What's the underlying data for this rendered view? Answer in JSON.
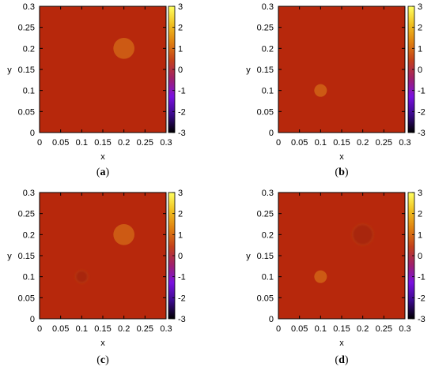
{
  "chart_data": [
    {
      "type": "heatmap",
      "caption_pre": "(",
      "caption_letter": "a",
      "caption_post": ")",
      "xlabel": "x",
      "ylabel": "y",
      "xlim": [
        0,
        0.3
      ],
      "ylim": [
        0,
        0.3
      ],
      "xticks": [
        "0",
        "0.05",
        "0.1",
        "0.15",
        "0.2",
        "0.25",
        "0.3"
      ],
      "yticks": [
        "0",
        "0.05",
        "0.1",
        "0.15",
        "0.2",
        "0.25",
        "0.3"
      ],
      "colorbar": {
        "range": [
          -3,
          3
        ],
        "ticks": [
          "3",
          "2",
          "1",
          "0",
          "-1",
          "-2",
          "-3"
        ]
      },
      "background_value": 0.6,
      "circles": [
        {
          "cx": 0.2,
          "cy": 0.2,
          "r": 0.025,
          "value": 1.0,
          "edge": "sharp"
        }
      ]
    },
    {
      "type": "heatmap",
      "caption_pre": "(",
      "caption_letter": "b",
      "caption_post": ")",
      "xlabel": "x",
      "ylabel": "y",
      "xlim": [
        0,
        0.3
      ],
      "ylim": [
        0,
        0.3
      ],
      "xticks": [
        "0",
        "0.05",
        "0.1",
        "0.15",
        "0.2",
        "0.25",
        "0.3"
      ],
      "yticks": [
        "0",
        "0.05",
        "0.1",
        "0.15",
        "0.2",
        "0.25",
        "0.3"
      ],
      "colorbar": {
        "range": [
          -3,
          3
        ],
        "ticks": [
          "3",
          "2",
          "1",
          "0",
          "-1",
          "-2",
          "-3"
        ]
      },
      "background_value": 0.6,
      "circles": [
        {
          "cx": 0.1,
          "cy": 0.1,
          "r": 0.015,
          "value": 1.0,
          "edge": "sharp"
        }
      ]
    },
    {
      "type": "heatmap",
      "caption_pre": "(",
      "caption_letter": "c",
      "caption_post": ")",
      "xlabel": "x",
      "ylabel": "y",
      "xlim": [
        0,
        0.3
      ],
      "ylim": [
        0,
        0.3
      ],
      "xticks": [
        "0",
        "0.05",
        "0.1",
        "0.15",
        "0.2",
        "0.25",
        "0.3"
      ],
      "yticks": [
        "0",
        "0.05",
        "0.1",
        "0.15",
        "0.2",
        "0.25",
        "0.3"
      ],
      "colorbar": {
        "range": [
          -3,
          3
        ],
        "ticks": [
          "3",
          "2",
          "1",
          "0",
          "-1",
          "-2",
          "-3"
        ]
      },
      "background_value": 0.6,
      "circles": [
        {
          "cx": 0.2,
          "cy": 0.2,
          "r": 0.025,
          "value": 1.0,
          "edge": "sharp"
        },
        {
          "cx": 0.1,
          "cy": 0.1,
          "r": 0.015,
          "value": 0.45,
          "edge": "faint"
        }
      ]
    },
    {
      "type": "heatmap",
      "caption_pre": "(",
      "caption_letter": "d",
      "caption_post": ")",
      "xlabel": "x",
      "ylabel": "y",
      "xlim": [
        0,
        0.3
      ],
      "ylim": [
        0,
        0.3
      ],
      "xticks": [
        "0",
        "0.05",
        "0.1",
        "0.15",
        "0.2",
        "0.25",
        "0.3"
      ],
      "yticks": [
        "0",
        "0.05",
        "0.1",
        "0.15",
        "0.2",
        "0.25",
        "0.3"
      ],
      "colorbar": {
        "range": [
          -3,
          3
        ],
        "ticks": [
          "3",
          "2",
          "1",
          "0",
          "-1",
          "-2",
          "-3"
        ]
      },
      "background_value": 0.6,
      "circles": [
        {
          "cx": 0.1,
          "cy": 0.1,
          "r": 0.015,
          "value": 1.0,
          "edge": "sharp"
        },
        {
          "cx": 0.2,
          "cy": 0.2,
          "r": 0.025,
          "value": 0.45,
          "edge": "faint"
        }
      ]
    }
  ],
  "colors": {
    "background": "#ffffff",
    "field": "#b7280c",
    "circle": "#cd5a14",
    "faint_circle": "#a8260b",
    "colormap": [
      "#000000",
      "#3b0a8c",
      "#7a10e0",
      "#a0206a",
      "#c4401a",
      "#e08010",
      "#f0c020",
      "#ffff60"
    ]
  }
}
